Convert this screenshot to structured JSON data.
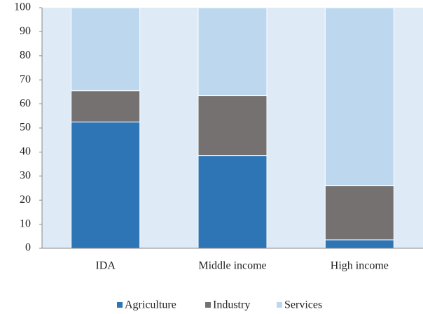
{
  "chart_data": {
    "type": "stacked_bar",
    "categories": [
      "IDA",
      "Middle income",
      "High income"
    ],
    "series": [
      {
        "name": "Agriculture",
        "color": "#2e75b6",
        "values": [
          52.5,
          38.5,
          3.5
        ]
      },
      {
        "name": "Industry",
        "color": "#767171",
        "values": [
          13,
          25,
          22.5
        ]
      },
      {
        "name": "Services",
        "color": "#bdd7ee",
        "values": [
          34.5,
          36.5,
          74
        ]
      }
    ],
    "ylim": [
      0,
      100
    ],
    "yticks": [
      0,
      10,
      20,
      30,
      40,
      50,
      60,
      70,
      80,
      90,
      100
    ],
    "legend": "bottom"
  }
}
